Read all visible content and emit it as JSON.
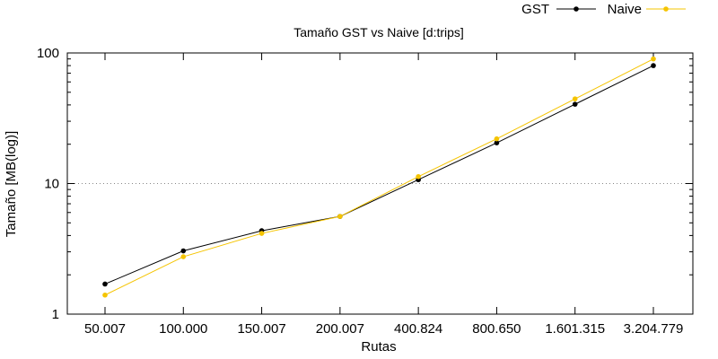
{
  "chart_data": {
    "type": "line",
    "title": "Tamaño GST vs Naive [d:trips]",
    "xlabel": "Rutas",
    "ylabel": "Tamaño [MB(log)]",
    "y_scale": "log",
    "ylim": [
      1,
      100
    ],
    "y_ticks": [
      "1",
      "10",
      "100"
    ],
    "grid": "dotted line at y=10",
    "legend_position": "top-right, outside",
    "categories": [
      "50.007",
      "100.000",
      "150.007",
      "200.007",
      "400.824",
      "800.650",
      "1.601.315",
      "3.204.779"
    ],
    "series": [
      {
        "name": "GST",
        "color": "#000000",
        "values": [
          1.7,
          3.05,
          4.35,
          5.6,
          10.7,
          20.5,
          40.5,
          80
        ]
      },
      {
        "name": "Naive",
        "color": "#f5c400",
        "values": [
          1.4,
          2.75,
          4.15,
          5.6,
          11.3,
          22.0,
          44.5,
          90
        ]
      }
    ]
  }
}
